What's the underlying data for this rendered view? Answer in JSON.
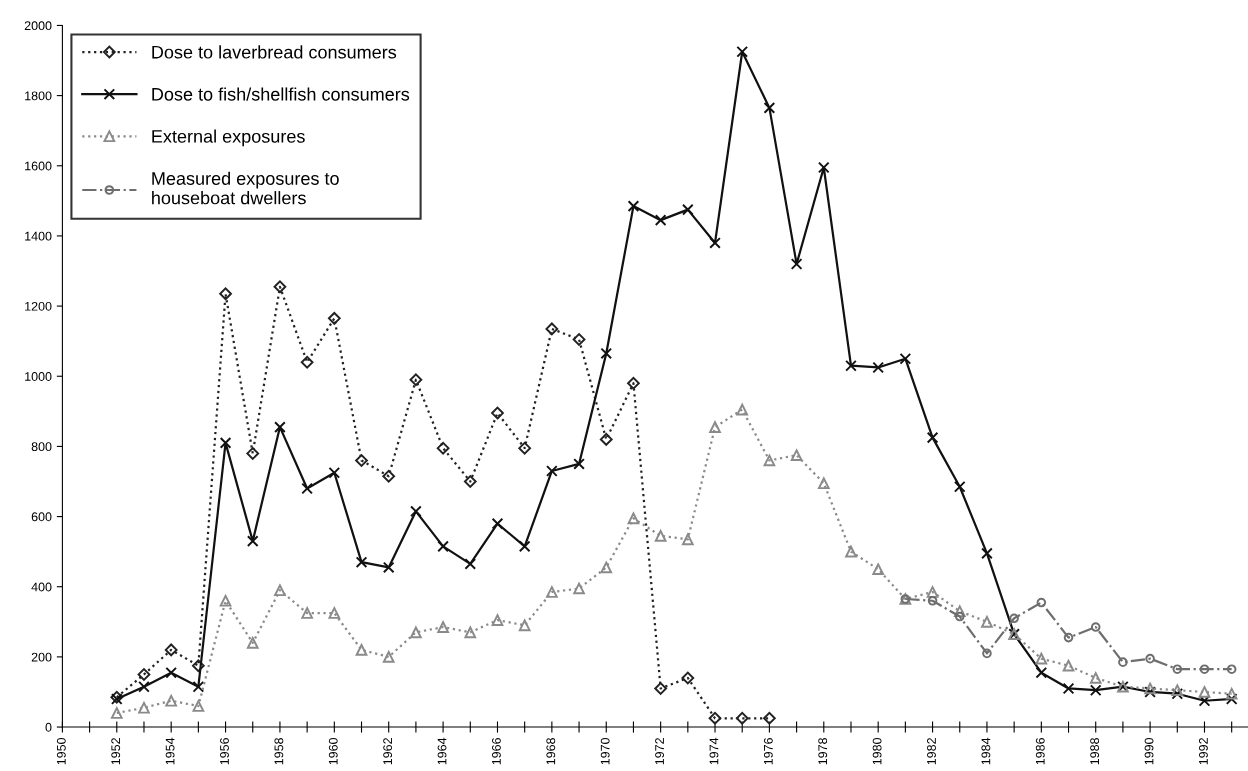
{
  "chart_data": {
    "type": "line",
    "x": [
      1952,
      1953,
      1954,
      1955,
      1956,
      1957,
      1958,
      1959,
      1960,
      1961,
      1962,
      1963,
      1964,
      1965,
      1966,
      1967,
      1968,
      1969,
      1970,
      1971,
      1972,
      1973,
      1974,
      1975,
      1976,
      1977,
      1978,
      1979,
      1980,
      1981,
      1982,
      1983,
      1984,
      1985,
      1986,
      1987,
      1988,
      1989,
      1990,
      1991,
      1992,
      1993
    ],
    "series": [
      {
        "name": "Dose to laverbread consumers",
        "color": "#222222",
        "marker": "diamond",
        "line_style": "dotted",
        "x": [
          1952,
          1953,
          1954,
          1955,
          1956,
          1957,
          1958,
          1959,
          1960,
          1961,
          1962,
          1963,
          1964,
          1965,
          1966,
          1967,
          1968,
          1969,
          1970,
          1971,
          1972,
          1973,
          1974,
          1975,
          1976
        ],
        "values": [
          85,
          150,
          220,
          175,
          1235,
          780,
          1255,
          1040,
          1165,
          760,
          715,
          990,
          795,
          700,
          895,
          795,
          1135,
          1105,
          820,
          980,
          110,
          140,
          25,
          25,
          25
        ]
      },
      {
        "name": "Dose to fish/shellfish consumers",
        "color": "#111111",
        "marker": "cross",
        "line_style": "solid",
        "values": [
          80,
          115,
          155,
          115,
          810,
          530,
          855,
          680,
          725,
          470,
          455,
          615,
          515,
          465,
          580,
          515,
          730,
          750,
          1065,
          1485,
          1445,
          1475,
          1380,
          1925,
          1765,
          1320,
          1595,
          1030,
          1025,
          1050,
          825,
          685,
          495,
          265,
          155,
          110,
          105,
          115,
          100,
          95,
          75,
          80
        ]
      },
      {
        "name": "External exposures",
        "color": "#8a8a8a",
        "marker": "triangle",
        "line_style": "dotted",
        "values": [
          40,
          55,
          75,
          60,
          360,
          240,
          390,
          325,
          325,
          220,
          200,
          270,
          285,
          270,
          305,
          290,
          385,
          395,
          455,
          595,
          545,
          535,
          855,
          905,
          760,
          775,
          695,
          500,
          450,
          365,
          385,
          330,
          300,
          265,
          195,
          175,
          140,
          115,
          110,
          105,
          100,
          95
        ]
      },
      {
        "name": "Measured exposures to\nhouseboat dwellers",
        "color": "#6e6e6e",
        "marker": "circle",
        "line_style": "dashdot",
        "x": [
          1981,
          1982,
          1983,
          1984,
          1985,
          1986,
          1987,
          1988,
          1989,
          1990,
          1991,
          1992,
          1993
        ],
        "values": [
          365,
          360,
          315,
          210,
          310,
          355,
          255,
          285,
          185,
          195,
          165,
          165,
          165
        ]
      }
    ],
    "xlim": [
      1950,
      1993.6
    ],
    "xticks": [
      1950,
      {
        "value": 1951,
        "label": null
      },
      1952,
      {
        "value": 1953,
        "label": null
      },
      1954,
      {
        "value": 1955,
        "label": null
      },
      1956,
      {
        "value": 1957,
        "label": null
      },
      1958,
      {
        "value": 1959,
        "label": null
      },
      1960,
      {
        "value": 1961,
        "label": null
      },
      1962,
      {
        "value": 1963,
        "label": null
      },
      1964,
      {
        "value": 1965,
        "label": null
      },
      1966,
      {
        "value": 1967,
        "label": null
      },
      1968,
      {
        "value": 1969,
        "label": null
      },
      1970,
      {
        "value": 1971,
        "label": null
      },
      1972,
      {
        "value": 1973,
        "label": null
      },
      1974,
      {
        "value": 1975,
        "label": null
      },
      1976,
      {
        "value": 1977,
        "label": null
      },
      1978,
      {
        "value": 1979,
        "label": null
      },
      1980,
      {
        "value": 1981,
        "label": null
      },
      1982,
      {
        "value": 1983,
        "label": null
      },
      1984,
      {
        "value": 1985,
        "label": null
      },
      1986,
      {
        "value": 1987,
        "label": null
      },
      1988,
      {
        "value": 1989,
        "label": null
      },
      1990,
      {
        "value": 1991,
        "label": null
      },
      1992,
      {
        "value": 1993,
        "label": null
      }
    ],
    "ylim": [
      0,
      2000
    ],
    "yticks": [
      0,
      200,
      400,
      600,
      800,
      1000,
      1200,
      1400,
      1600,
      1800,
      2000
    ],
    "grid": false,
    "legend": "top left"
  }
}
